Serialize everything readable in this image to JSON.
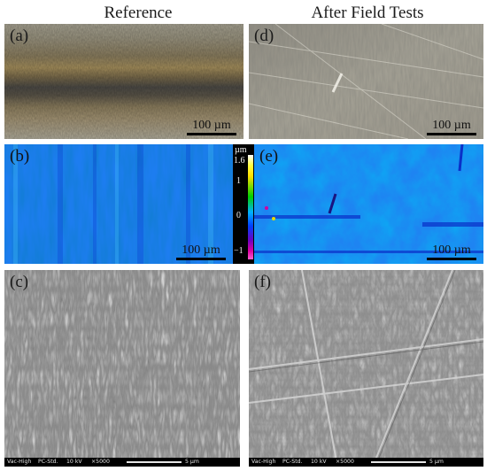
{
  "titles": {
    "reference": "Reference",
    "after": "After Field Tests"
  },
  "panels": {
    "a": {
      "label": "(a)",
      "scale": "100 µm"
    },
    "b": {
      "label": "(b)",
      "scale": "100 µm"
    },
    "c": {
      "label": "(c)"
    },
    "d": {
      "label": "(d)",
      "scale": "100 µm"
    },
    "e": {
      "label": "(e)",
      "scale": "100 µm"
    },
    "f": {
      "label": "(f)"
    }
  },
  "colorbar": {
    "unit": "µm",
    "ticks": [
      "1.6",
      "1",
      "0",
      "−1"
    ]
  },
  "sem": {
    "mode": "Vac-High",
    "detector": "PC-Std.",
    "voltage": "10 kV",
    "magnification": "×5000",
    "scale": "5 µm"
  }
}
